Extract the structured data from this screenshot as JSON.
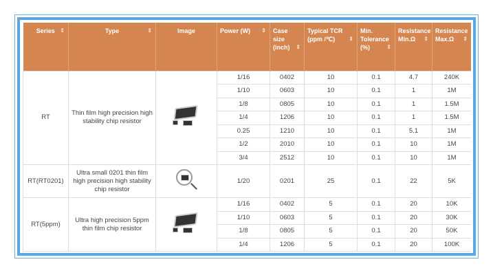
{
  "colors": {
    "header_bg": "#d5854f",
    "frame": "#5aa6e6"
  },
  "headers": [
    {
      "label": "Series",
      "sortable": true
    },
    {
      "label": "Type",
      "sortable": true
    },
    {
      "label": "Image",
      "sortable": false
    },
    {
      "label": "Power (W)",
      "sortable": true
    },
    {
      "label": "Case size (inch)",
      "sortable": true
    },
    {
      "label": "Typical TCR (ppm /℃)",
      "sortable": true
    },
    {
      "label": "Min. Tolerance (%)",
      "sortable": true
    },
    {
      "label": "Resistance Min.Ω",
      "sortable": true
    },
    {
      "label": "Resistance Max.Ω",
      "sortable": true
    }
  ],
  "sort_icon": "⇕",
  "groups": [
    {
      "series": "RT",
      "type": "Thin film high precision high stability chip resistor",
      "image": "chip-resistor-image",
      "rows": [
        [
          "1/16",
          "0402",
          "10",
          "0.1",
          "4.7",
          "240K"
        ],
        [
          "1/10",
          "0603",
          "10",
          "0.1",
          "1",
          "1M"
        ],
        [
          "1/8",
          "0805",
          "10",
          "0.1",
          "1",
          "1.5M"
        ],
        [
          "1/4",
          "1206",
          "10",
          "0.1",
          "1",
          "1.5M"
        ],
        [
          "0.25",
          "1210",
          "10",
          "0.1",
          "5.1",
          "1M"
        ],
        [
          "1/2",
          "2010",
          "10",
          "0.1",
          "10",
          "1M"
        ],
        [
          "3/4",
          "2512",
          "10",
          "0.1",
          "10",
          "1M"
        ]
      ]
    },
    {
      "series": "RT(RT0201)",
      "type": "Ultra small 0201 thin film high precision high stability chip resistor",
      "image": "magnifier-chip-image",
      "rows": [
        [
          "1/20",
          "0201",
          "25",
          "0.1",
          "22",
          "5K"
        ]
      ]
    },
    {
      "series": "RT(5ppm)",
      "type": "Ultra high precision 5ppm thin film chip resistor",
      "image": "chip-resistor-image",
      "rows": [
        [
          "1/16",
          "0402",
          "5",
          "0.1",
          "20",
          "10K"
        ],
        [
          "1/10",
          "0603",
          "5",
          "0.1",
          "20",
          "30K"
        ],
        [
          "1/8",
          "0805",
          "5",
          "0.1",
          "20",
          "50K"
        ],
        [
          "1/4",
          "1206",
          "5",
          "0.1",
          "20",
          "100K"
        ]
      ]
    }
  ]
}
